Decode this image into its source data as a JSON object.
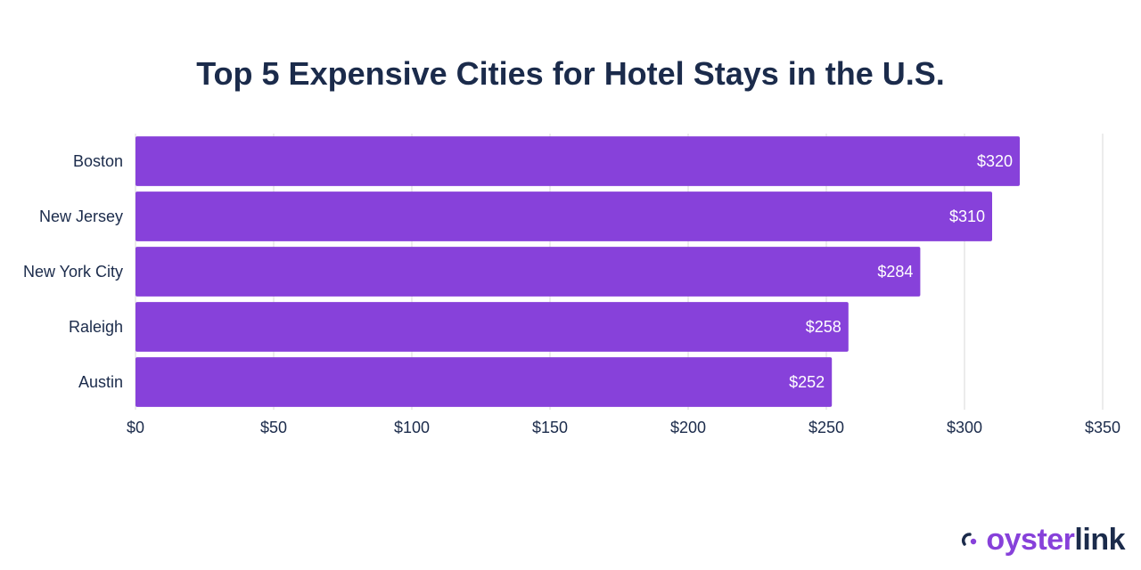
{
  "chart_data": {
    "type": "bar",
    "orientation": "horizontal",
    "title": "Top 5 Expensive Cities for Hotel Stays in the U.S.",
    "categories": [
      "Boston",
      "New Jersey",
      "New York City",
      "Raleigh",
      "Austin"
    ],
    "values": [
      320,
      310,
      284,
      258,
      252
    ],
    "value_labels": [
      "$320",
      "$310",
      "$284",
      "$258",
      "$252"
    ],
    "x_ticks": [
      0,
      50,
      100,
      150,
      200,
      250,
      300,
      350
    ],
    "x_tick_labels": [
      "$0",
      "$50",
      "$100",
      "$150",
      "$200",
      "$250",
      "$300",
      "$350"
    ],
    "xlim": [
      0,
      350
    ],
    "grid": "vertical",
    "bar_color": "#8741da",
    "xlabel": "",
    "ylabel": ""
  },
  "brand": {
    "logo_part1": "oyster",
    "logo_part2": "link",
    "color_part1": "#8741da",
    "color_part2": "#1b2b4b"
  }
}
